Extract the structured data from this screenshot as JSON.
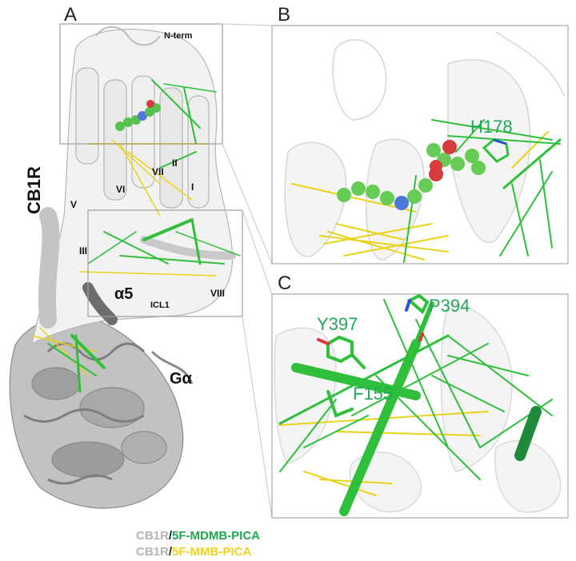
{
  "panels": {
    "a": "A",
    "b": "B",
    "c": "C"
  },
  "protein_labels": {
    "receptor": "CB1R",
    "g_alpha": "Gα",
    "alpha5": "α5",
    "n_term": "N-term",
    "icl1": "ICL1",
    "helices": {
      "h1": "I",
      "h2": "II",
      "h3": "III",
      "h5": "V",
      "h6": "VI",
      "h7": "VII",
      "h8": "VIII"
    }
  },
  "residues": {
    "panel_b": [
      "H178"
    ],
    "panel_c": [
      "Y397",
      "P394",
      "F155"
    ]
  },
  "legend": [
    {
      "prefix": "CB1R",
      "sep": "/",
      "ligand": "5F-MDMB-PICA",
      "ligand_color": "#1fa84f"
    },
    {
      "prefix": "CB1R",
      "sep": "/",
      "ligand": "5F-MMB-PICA",
      "ligand_color": "#f2d31b"
    }
  ],
  "colors": {
    "receptor": "#e6e6e6",
    "g_protein": "#a8a8a8",
    "network_mdmb": "#2fbf3a",
    "network_mmb": "#e8d31a",
    "residue_label": "#22a85a",
    "legend_prefix": "#b5b5b5"
  }
}
